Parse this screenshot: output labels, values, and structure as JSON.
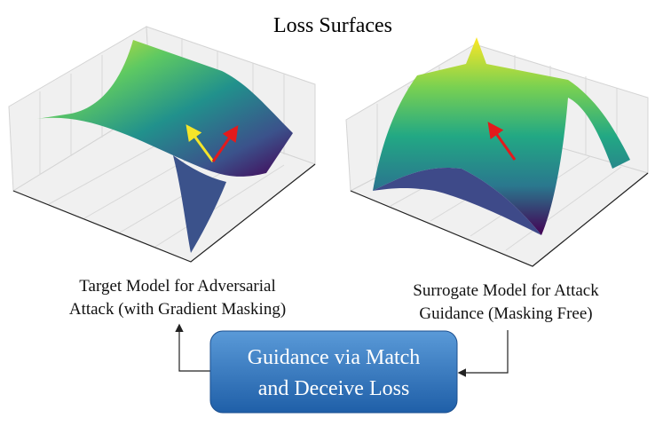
{
  "title": "Loss Surfaces",
  "left_panel": {
    "label_lines": [
      "Target Model for Adversarial",
      "Attack (with Gradient Masking)"
    ]
  },
  "right_panel": {
    "label_lines": [
      "Surrogate Model for Attack",
      "Guidance (Masking Free)"
    ]
  },
  "guidance_box": {
    "lines": [
      "Guidance via Match",
      "and Deceive Loss"
    ]
  }
}
